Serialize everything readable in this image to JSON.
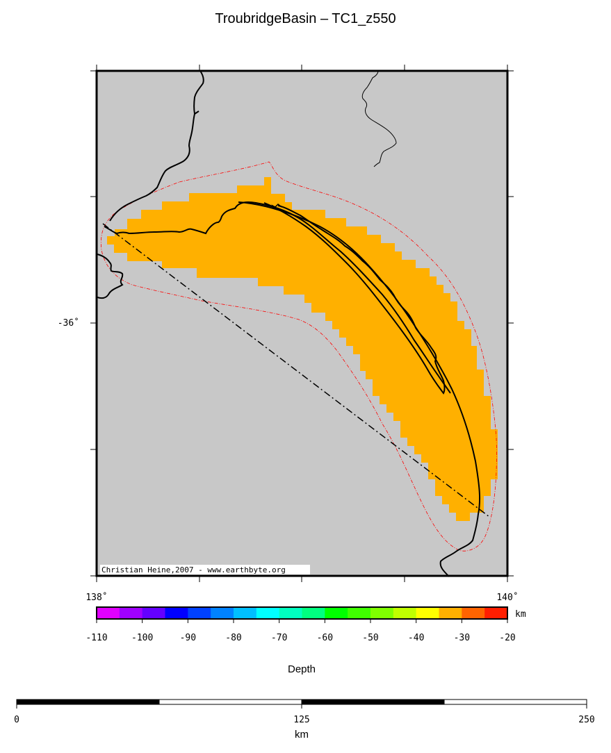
{
  "title": "TroubridgeBasin – TC1_z550",
  "map": {
    "lat_label": "-36˚",
    "lon_left_label": "138˚",
    "lon_right_label": "140˚",
    "credit": "Christian Heine,2007 - www.earthbyte.org",
    "background_color": "#c8c8c8",
    "basin_fill_color": "#ffb000",
    "outline_color": "#ff0000"
  },
  "colorbar": {
    "unit": "km",
    "label": "Depth",
    "ticks": [
      "-110",
      "-100",
      "-90",
      "-80",
      "-70",
      "-60",
      "-50",
      "-40",
      "-30",
      "-20"
    ],
    "colors": [
      "#e100ff",
      "#a000ff",
      "#6400ff",
      "#0000ff",
      "#0041ff",
      "#0082ff",
      "#00bfff",
      "#00ffff",
      "#00ffc0",
      "#00ff80",
      "#00ff00",
      "#40ff00",
      "#80ff00",
      "#c0ff00",
      "#ffff00",
      "#ffb000",
      "#ff6400",
      "#ff1e00"
    ]
  },
  "scalebar": {
    "ticks": [
      "0",
      "125",
      "250"
    ],
    "unit": "km"
  }
}
